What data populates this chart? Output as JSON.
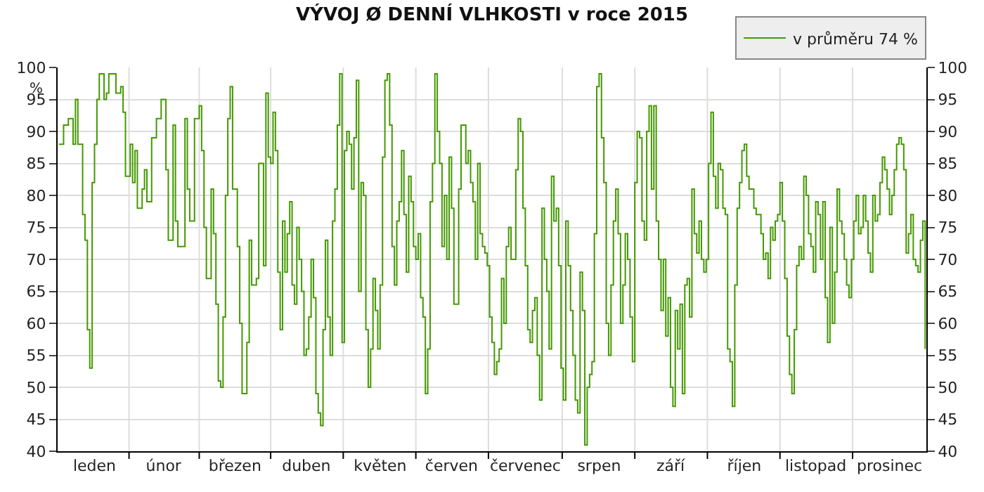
{
  "chart_data": {
    "type": "step",
    "title": "VÝVOJ Ø DENNÍ VLHKOSTI v roce 2015",
    "ylabel": "%",
    "categories": [
      null,
      null,
      null,
      null,
      null,
      null,
      null,
      null,
      null,
      null,
      null,
      null,
      null,
      null,
      null,
      "leden",
      null,
      null,
      null,
      null,
      null,
      null,
      null,
      null,
      null,
      null,
      null,
      null,
      null,
      null,
      null,
      null,
      null,
      null,
      null,
      null,
      null,
      null,
      null,
      null,
      null,
      null,
      null,
      null,
      "únor",
      null,
      null,
      null,
      null,
      null,
      null,
      null,
      null,
      null,
      null,
      null,
      null,
      null,
      null,
      null,
      null,
      null,
      null,
      null,
      null,
      null,
      null,
      null,
      null,
      null,
      null,
      null,
      null,
      null,
      "březen",
      null,
      null,
      null,
      null,
      null,
      null,
      null,
      null,
      null,
      null,
      null,
      null,
      null,
      null,
      null,
      null,
      null,
      null,
      null,
      null,
      null,
      null,
      null,
      null,
      null,
      null,
      null,
      null,
      null,
      "duben",
      null,
      null,
      null,
      null,
      null,
      null,
      null,
      null,
      null,
      null,
      null,
      null,
      null,
      null,
      null,
      null,
      null,
      null,
      null,
      null,
      null,
      null,
      null,
      null,
      null,
      null,
      null,
      null,
      null,
      null,
      "květen",
      null,
      null,
      null,
      null,
      null,
      null,
      null,
      null,
      null,
      null,
      null,
      null,
      null,
      null,
      null,
      null,
      null,
      null,
      null,
      null,
      null,
      null,
      null,
      null,
      null,
      null,
      null,
      null,
      null,
      "červen",
      null,
      null,
      null,
      null,
      null,
      null,
      null,
      null,
      null,
      null,
      null,
      null,
      null,
      null,
      null,
      null,
      null,
      null,
      null,
      null,
      null,
      null,
      null,
      null,
      null,
      null,
      null,
      null,
      null,
      null,
      "červenec",
      null,
      null,
      null,
      null,
      null,
      null,
      null,
      null,
      null,
      null,
      null,
      null,
      null,
      null,
      null,
      null,
      null,
      null,
      null,
      null,
      null,
      null,
      null,
      null,
      null,
      null,
      null,
      null,
      null,
      null,
      "srpen",
      null,
      null,
      null,
      null,
      null,
      null,
      null,
      null,
      null,
      null,
      null,
      null,
      null,
      null,
      null,
      null,
      null,
      null,
      null,
      null,
      null,
      null,
      null,
      null,
      null,
      null,
      null,
      null,
      null,
      "září",
      null,
      null,
      null,
      null,
      null,
      null,
      null,
      null,
      null,
      null,
      null,
      null,
      null,
      null,
      null,
      null,
      null,
      null,
      null,
      null,
      null,
      null,
      null,
      null,
      null,
      null,
      null,
      null,
      null,
      null,
      "říjen",
      null,
      null,
      null,
      null,
      null,
      null,
      null,
      null,
      null,
      null,
      null,
      null,
      null,
      null,
      null,
      null,
      null,
      null,
      null,
      null,
      null,
      null,
      null,
      null,
      null,
      null,
      null,
      null,
      null,
      "listopad",
      null,
      null,
      null,
      null,
      null,
      null,
      null,
      null,
      null,
      null,
      null,
      null,
      null,
      null,
      null,
      null,
      null,
      null,
      null,
      null,
      null,
      null,
      null,
      null,
      null,
      null,
      null,
      null,
      null,
      null,
      "prosinec",
      null,
      null,
      null,
      null,
      null,
      null,
      null,
      null,
      null,
      null,
      null,
      null,
      null,
      null,
      null
    ],
    "ylim": [
      40,
      100
    ],
    "yticks": [
      40,
      45,
      50,
      55,
      60,
      65,
      70,
      75,
      80,
      85,
      90,
      95,
      100
    ],
    "y2lim": [
      40,
      100
    ],
    "y2ticks": [
      40,
      45,
      50,
      55,
      60,
      65,
      70,
      75,
      80,
      85,
      90,
      95,
      100
    ],
    "grid": true,
    "legend": "top right",
    "series": [
      {
        "name": "v průměru 74 %",
        "color": "#449900",
        "values": [
          88,
          88,
          91,
          91,
          92,
          92,
          88,
          95,
          88,
          88,
          77,
          73,
          59,
          53,
          82,
          88,
          95,
          99,
          99,
          95,
          96,
          99,
          99,
          99,
          96,
          96,
          97,
          93,
          83,
          83,
          88,
          82,
          87,
          78,
          78,
          81,
          84,
          79,
          79,
          89,
          89,
          92,
          92,
          95,
          95,
          84,
          73,
          73,
          91,
          76,
          72,
          72,
          72,
          92,
          81,
          76,
          76,
          92,
          92,
          94,
          87,
          75,
          67,
          67,
          81,
          74,
          63,
          51,
          50,
          61,
          80,
          92,
          97,
          81,
          81,
          72,
          60,
          49,
          49,
          57,
          73,
          66,
          66,
          67,
          85,
          85,
          69,
          96,
          86,
          85,
          93,
          87,
          68,
          59,
          76,
          68,
          74,
          79,
          66,
          63,
          75,
          70,
          65,
          55,
          56,
          61,
          70,
          64,
          49,
          46,
          44,
          59,
          73,
          61,
          55,
          76,
          81,
          91,
          99,
          57,
          87,
          90,
          88,
          81,
          89,
          98,
          65,
          82,
          80,
          59,
          50,
          56,
          67,
          62,
          56,
          66,
          86,
          98,
          99,
          91,
          72,
          66,
          76,
          79,
          87,
          77,
          68,
          83,
          79,
          72,
          70,
          74,
          64,
          61,
          49,
          56,
          79,
          85,
          99,
          90,
          85,
          72,
          80,
          70,
          86,
          78,
          63,
          63,
          81,
          91,
          91,
          85,
          87,
          82,
          79,
          70,
          85,
          74,
          72,
          71,
          69,
          61,
          57,
          52,
          54,
          56,
          67,
          60,
          72,
          75,
          70,
          70,
          84,
          92,
          90,
          78,
          69,
          59,
          57,
          62,
          64,
          55,
          48,
          78,
          70,
          65,
          56,
          83,
          76,
          78,
          69,
          53,
          48,
          76,
          69,
          62,
          55,
          48,
          46,
          68,
          62,
          41,
          50,
          52,
          54,
          74,
          97,
          99,
          89,
          82,
          60,
          55,
          66,
          76,
          81,
          74,
          60,
          66,
          74,
          70,
          61,
          54,
          82,
          90,
          89,
          76,
          73,
          90,
          94,
          81,
          94,
          76,
          70,
          62,
          70,
          58,
          64,
          50,
          47,
          62,
          56,
          63,
          49,
          66,
          67,
          61,
          81,
          74,
          71,
          76,
          70,
          68,
          70,
          85,
          93,
          83,
          78,
          85,
          84,
          78,
          77,
          56,
          54,
          47,
          66,
          78,
          82,
          87,
          88,
          83,
          81,
          81,
          78,
          77,
          77,
          74,
          70,
          71,
          67,
          75,
          73,
          76,
          77,
          82,
          76,
          67,
          58,
          52,
          49,
          59,
          69,
          72,
          70,
          83,
          80,
          74,
          72,
          68,
          79,
          77,
          70,
          79,
          64,
          57,
          75,
          60,
          68,
          81,
          76,
          74,
          70,
          66,
          64,
          70,
          76,
          80,
          74,
          75,
          80,
          76,
          71,
          68,
          80,
          76,
          77,
          82,
          86,
          84,
          81,
          77,
          80,
          84,
          88,
          89,
          88,
          84,
          71,
          74,
          77,
          70,
          69,
          68,
          73,
          76,
          56
        ]
      }
    ]
  }
}
